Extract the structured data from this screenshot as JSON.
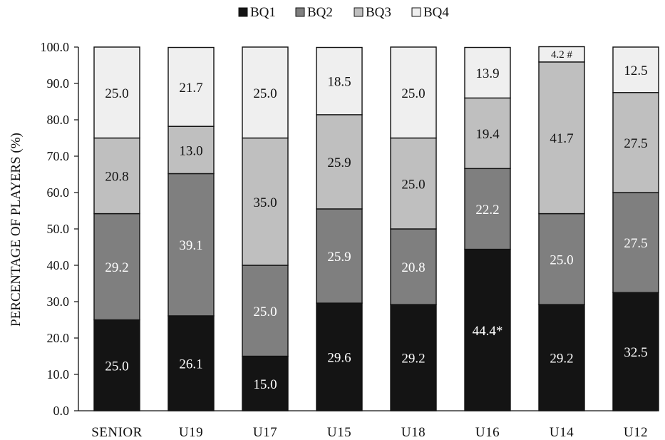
{
  "chart_data": {
    "type": "bar",
    "stacked": true,
    "title": "",
    "xlabel": "",
    "ylabel": "PERCENTAGE OF PLAYERS (%)",
    "ylim": [
      0,
      100
    ],
    "yticks": [
      "0.0",
      "10.0",
      "20.0",
      "30.0",
      "40.0",
      "50.0",
      "60.0",
      "70.0",
      "80.0",
      "90.0",
      "100.0"
    ],
    "legend_position": "top-center",
    "grid": false,
    "categories": [
      "SENIOR",
      "U19",
      "U17",
      "U15",
      "U18",
      "U16",
      "U14",
      "U12"
    ],
    "series": [
      {
        "name": "BQ1",
        "color": "#141414",
        "label_color": "#ffffff",
        "values": [
          25.0,
          26.1,
          15.0,
          29.6,
          29.2,
          44.4,
          29.2,
          32.5
        ],
        "labels": [
          "25.0",
          "26.1",
          "15.0",
          "29.6",
          "29.2",
          "44.4*",
          "29.2",
          "32.5"
        ]
      },
      {
        "name": "BQ2",
        "color": "#7f7f7f",
        "label_color": "#ffffff",
        "values": [
          29.2,
          39.1,
          25.0,
          25.9,
          20.8,
          22.2,
          25.0,
          27.5
        ],
        "labels": [
          "29.2",
          "39.1",
          "25.0",
          "25.9",
          "20.8",
          "22.2",
          "25.0",
          "27.5"
        ]
      },
      {
        "name": "BQ3",
        "color": "#bfbfbf",
        "label_color": "#111111",
        "values": [
          20.8,
          13.0,
          35.0,
          25.9,
          25.0,
          19.4,
          41.7,
          27.5
        ],
        "labels": [
          "20.8",
          "13.0",
          "35.0",
          "25.9",
          "25.0",
          "19.4",
          "41.7",
          "27.5"
        ]
      },
      {
        "name": "BQ4",
        "color": "#efefef",
        "label_color": "#111111",
        "values": [
          25.0,
          21.7,
          25.0,
          18.5,
          25.0,
          13.9,
          4.2,
          12.5
        ],
        "labels": [
          "25.0",
          "21.7",
          "25.0",
          "18.5",
          "25.0",
          "13.9",
          "4.2 #",
          "12.5"
        ]
      }
    ]
  }
}
